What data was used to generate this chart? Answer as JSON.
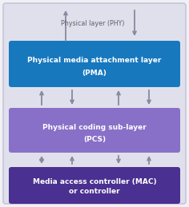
{
  "background_color": "#f0f0f6",
  "outer_box_facecolor": "#e0e0ec",
  "outer_box_edgecolor": "#c0c0d4",
  "pma_box_color": "#1878be",
  "pcs_box_color": "#8870c8",
  "mac_box_color": "#4a3090",
  "pma_label_line1": "Physical media attachment layer",
  "pma_label_line2": "(PMA)",
  "pcs_label_line1": "Physical coding sub-layer",
  "pcs_label_line2": "(PCS)",
  "mac_label_line1": "Media access controller (MAC)",
  "mac_label_line2": "or controller",
  "phy_label": "Physical layer (PHY)",
  "arrow_color": "#8888a0",
  "text_white": "#ffffff",
  "text_gray": "#606070",
  "fig_width": 2.36,
  "fig_height": 2.59,
  "dpi": 100
}
